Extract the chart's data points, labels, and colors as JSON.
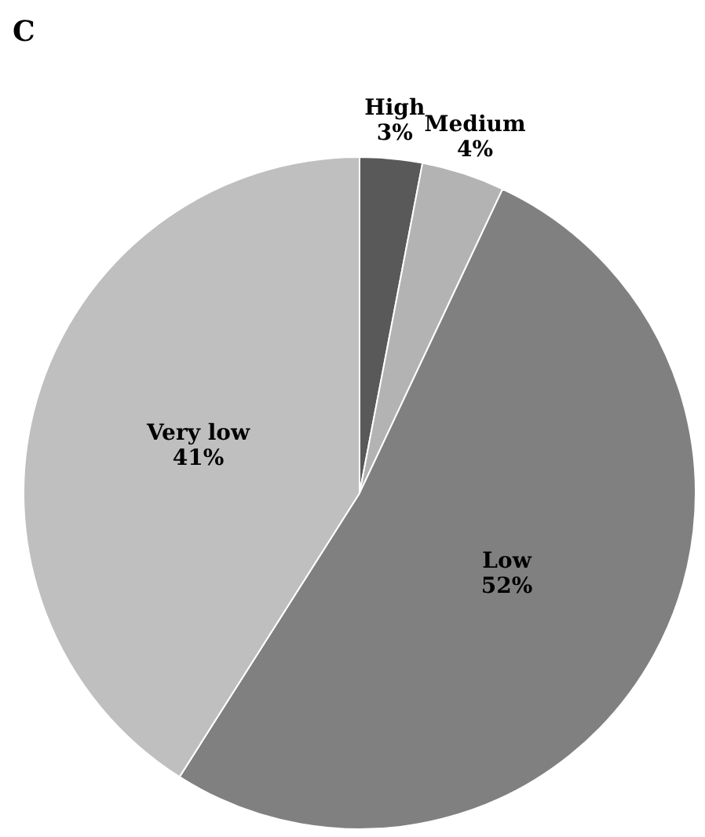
{
  "chart_data": {
    "type": "pie",
    "title": "C",
    "categories": [
      "High",
      "Medium",
      "Low",
      "Very low"
    ],
    "values": [
      3,
      4,
      52,
      41
    ],
    "value_labels": [
      "3%",
      "4%",
      "52%",
      "41%"
    ],
    "colors": [
      "#595959",
      "#b3b3b3",
      "#808080",
      "#bfbfbf"
    ]
  }
}
